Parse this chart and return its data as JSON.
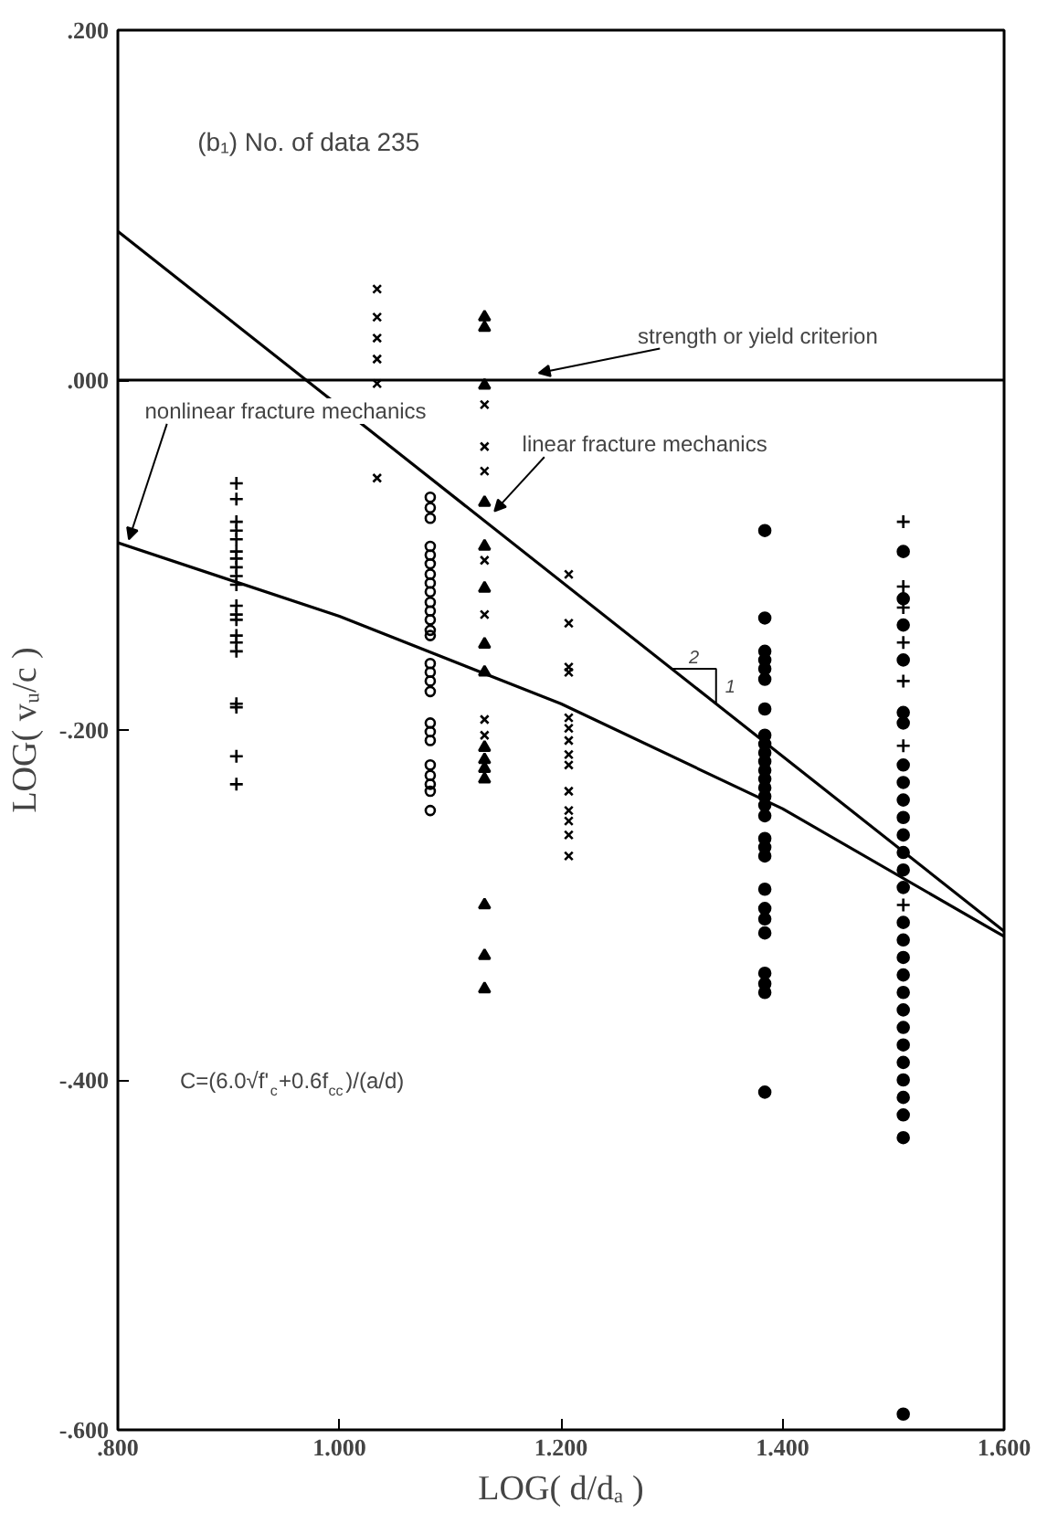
{
  "chart_data": {
    "type": "scatter",
    "xlabel": "LOG( d/dₐ )",
    "ylabel": "LOG( vᵤ/c )",
    "xlim": [
      0.8,
      1.6
    ],
    "ylim": [
      -0.6,
      0.2
    ],
    "xticks": [
      {
        "value": 0.8,
        "label": ".800"
      },
      {
        "value": 1.0,
        "label": "1.000"
      },
      {
        "value": 1.2,
        "label": "1.200"
      },
      {
        "value": 1.4,
        "label": "1.400"
      },
      {
        "value": 1.6,
        "label": "1.600"
      }
    ],
    "yticks": [
      {
        "value": -0.6,
        "label": "-.600"
      },
      {
        "value": -0.4,
        "label": "-.400"
      },
      {
        "value": -0.2,
        "label": "-.200"
      },
      {
        "value": 0,
        "label": ".000"
      },
      {
        "value": 0.2,
        "label": ".200"
      }
    ],
    "grid": false,
    "series": [
      {
        "marker": "plus",
        "color": "#000000",
        "x": [
          0.907,
          0.907,
          0.907,
          0.907,
          0.907,
          0.907,
          0.907,
          0.907,
          0.907,
          0.907,
          0.907,
          0.907,
          0.907,
          0.907,
          0.907,
          0.907,
          0.907,
          0.907,
          0.907,
          0.907,
          1.509,
          1.509,
          1.509,
          1.509,
          1.509,
          1.509,
          1.509
        ],
        "values": [
          -0.059,
          -0.068,
          -0.081,
          -0.086,
          -0.091,
          -0.098,
          -0.102,
          -0.107,
          -0.112,
          -0.117,
          -0.129,
          -0.134,
          -0.137,
          -0.146,
          -0.15,
          -0.155,
          -0.185,
          -0.187,
          -0.215,
          -0.231,
          -0.081,
          -0.118,
          -0.13,
          -0.15,
          -0.172,
          -0.209,
          -0.3
        ]
      },
      {
        "marker": "cross",
        "color": "#000000",
        "x": [
          1.034,
          1.034,
          1.034,
          1.034,
          1.034,
          1.034,
          1.131,
          1.131,
          1.131,
          1.131,
          1.131,
          1.131,
          1.131,
          1.207,
          1.207,
          1.207,
          1.207,
          1.207,
          1.207,
          1.207,
          1.207,
          1.207,
          1.207,
          1.207,
          1.207,
          1.207,
          1.207
        ],
        "values": [
          0.052,
          0.036,
          0.024,
          0.012,
          -0.002,
          -0.056,
          -0.014,
          -0.038,
          -0.052,
          -0.103,
          -0.134,
          -0.194,
          -0.203,
          -0.111,
          -0.139,
          -0.164,
          -0.167,
          -0.193,
          -0.199,
          -0.206,
          -0.214,
          -0.22,
          -0.235,
          -0.246,
          -0.252,
          -0.26,
          -0.272
        ]
      },
      {
        "marker": "circle_open",
        "color": "#000000",
        "x": [
          1.082,
          1.082,
          1.082,
          1.082,
          1.082,
          1.082,
          1.082,
          1.082,
          1.082,
          1.082,
          1.082,
          1.082,
          1.082,
          1.082,
          1.082,
          1.082,
          1.082,
          1.082,
          1.082,
          1.082,
          1.082,
          1.082,
          1.082,
          1.082,
          1.082,
          1.082
        ],
        "values": [
          -0.067,
          -0.073,
          -0.079,
          -0.095,
          -0.1,
          -0.105,
          -0.111,
          -0.116,
          -0.121,
          -0.127,
          -0.132,
          -0.137,
          -0.143,
          -0.146,
          -0.162,
          -0.167,
          -0.172,
          -0.178,
          -0.196,
          -0.201,
          -0.206,
          -0.22,
          -0.226,
          -0.231,
          -0.235,
          -0.246
        ]
      },
      {
        "marker": "triangle",
        "color": "#000000",
        "x": [
          1.131,
          1.131,
          1.131,
          1.131,
          1.131,
          1.131,
          1.131,
          1.131,
          1.131,
          1.131,
          1.131,
          1.131,
          1.131,
          1.131,
          1.131
        ],
        "values": [
          0.036,
          0.03,
          -0.003,
          -0.07,
          -0.095,
          -0.119,
          -0.151,
          -0.167,
          -0.21,
          -0.217,
          -0.222,
          -0.228,
          -0.3,
          -0.329,
          -0.348
        ]
      },
      {
        "marker": "circle",
        "color": "#000000",
        "x": [
          1.384,
          1.384,
          1.384,
          1.384,
          1.384,
          1.384,
          1.384,
          1.384,
          1.384,
          1.384,
          1.384,
          1.384,
          1.384,
          1.384,
          1.384,
          1.384,
          1.384,
          1.384,
          1.384,
          1.384,
          1.384,
          1.384,
          1.384,
          1.384,
          1.384,
          1.384,
          1.384,
          1.384,
          1.509,
          1.509,
          1.509,
          1.509,
          1.509,
          1.509,
          1.509,
          1.509,
          1.509,
          1.509,
          1.509,
          1.509,
          1.509,
          1.509,
          1.509,
          1.509,
          1.509,
          1.509,
          1.509,
          1.509,
          1.509,
          1.509,
          1.509,
          1.509,
          1.509,
          1.509,
          1.509,
          1.509
        ],
        "values": [
          -0.086,
          -0.136,
          -0.155,
          -0.16,
          -0.165,
          -0.171,
          -0.188,
          -0.203,
          -0.208,
          -0.213,
          -0.218,
          -0.223,
          -0.228,
          -0.233,
          -0.238,
          -0.243,
          -0.249,
          -0.262,
          -0.267,
          -0.272,
          -0.291,
          -0.302,
          -0.308,
          -0.316,
          -0.339,
          -0.345,
          -0.35,
          -0.407,
          -0.098,
          -0.125,
          -0.14,
          -0.16,
          -0.19,
          -0.196,
          -0.22,
          -0.23,
          -0.24,
          -0.25,
          -0.26,
          -0.27,
          -0.28,
          -0.29,
          -0.31,
          -0.32,
          -0.33,
          -0.34,
          -0.35,
          -0.36,
          -0.37,
          -0.38,
          -0.39,
          -0.4,
          -0.41,
          -0.42,
          -0.433,
          -0.591
        ]
      },
      {
        "type": "line",
        "line_style": "solid",
        "color": "#000000",
        "x": [
          0.8,
          1.6
        ],
        "values": [
          0.085,
          -0.315
        ]
      },
      {
        "type": "line",
        "line_style": "solid",
        "color": "#000000",
        "x": [
          0.8,
          1.0,
          1.2,
          1.4,
          1.6
        ],
        "values": [
          -0.093,
          -0.135,
          -0.185,
          -0.245,
          -0.318
        ]
      }
    ],
    "ref_lines": [
      {
        "axis": "y",
        "value": 0,
        "color": "#000000"
      }
    ],
    "annotations": [
      "(b₁) No. of data 235",
      {
        "text": "nonlinear fracture mechanics",
        "x": 0.81,
        "y": -0.095
      },
      {
        "text": "linear fracture mechanics",
        "x": 1.14,
        "y": -0.079
      },
      {
        "text": "strength or yield criterion",
        "x": 1.18,
        "y": 0
      },
      {
        "text": "2",
        "x": 1.3,
        "y": -0.165
      },
      {
        "text": "1",
        "x": 1.34,
        "y": -0.185
      },
      "C=(6.0√f'$_{c}$+0.6f$_{cc}$)/(a/d)"
    ]
  }
}
